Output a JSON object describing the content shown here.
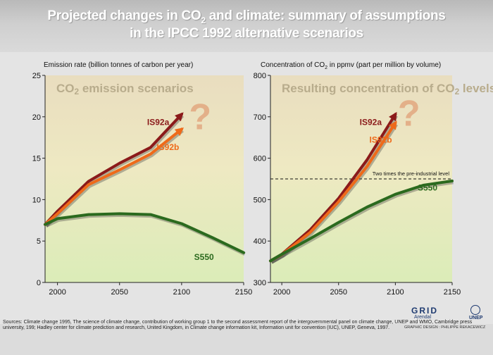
{
  "title": {
    "line1_pre": "Projected changes in CO",
    "line1_sub": "2",
    "line1_post": " and climate: summary of assumptions",
    "line2": "in the IPCC 1992 alternative scenarios"
  },
  "chart_data": [
    {
      "type": "line",
      "ylabel": "Emission rate (billion tonnes of carbon per year)",
      "inset_title_pre": "CO",
      "inset_title_sub": "2",
      "inset_title_post": " emission scenarios",
      "xlim": [
        1990,
        2150
      ],
      "ylim": [
        0,
        25
      ],
      "xticks": [
        2000,
        2050,
        2100,
        2150
      ],
      "yticks": [
        0,
        5,
        10,
        15,
        20,
        25
      ],
      "question_mark": "?",
      "series": [
        {
          "name": "IS92a",
          "color": "#8b1a1a",
          "label_pos": [
            2090,
            19.0
          ],
          "x": [
            1990,
            2000,
            2025,
            2050,
            2075,
            2100
          ],
          "y": [
            7.0,
            8.6,
            12.2,
            14.4,
            16.3,
            20.3
          ],
          "arrow": true
        },
        {
          "name": "IS92b",
          "color": "#ee6a1a",
          "label_pos": [
            2098,
            16.0
          ],
          "x": [
            1990,
            2000,
            2025,
            2050,
            2075,
            2100
          ],
          "y": [
            7.0,
            8.3,
            11.8,
            13.6,
            15.5,
            18.5
          ],
          "arrow": true
        },
        {
          "name": "S550",
          "color": "#2b6a1e",
          "label_pos": [
            2126,
            2.7
          ],
          "x": [
            1990,
            2000,
            2025,
            2050,
            2075,
            2100,
            2125,
            2150
          ],
          "y": [
            7.0,
            7.7,
            8.2,
            8.3,
            8.2,
            7.1,
            5.4,
            3.6
          ],
          "arrow": false
        }
      ]
    },
    {
      "type": "line",
      "ylabel_pre": "Concentration of CO",
      "ylabel_sub": "2",
      "ylabel_post": " in ppmv (part per million by volume)",
      "inset_title_pre": "Resulting concentration of CO",
      "inset_title_sub": "2",
      "inset_title_post": " levels",
      "xlim": [
        1990,
        2150
      ],
      "ylim": [
        300,
        800
      ],
      "xticks": [
        2000,
        2050,
        2100,
        2150
      ],
      "yticks": [
        300,
        400,
        500,
        600,
        700,
        800
      ],
      "question_mark": "?",
      "reference_line": {
        "value": 550,
        "label": "Two times the pre-industrial level"
      },
      "series": [
        {
          "name": "IS92a",
          "color": "#8b1a1a",
          "label_pos": [
            2088,
            680
          ],
          "x": [
            1990,
            2000,
            2025,
            2050,
            2075,
            2100
          ],
          "y": [
            352,
            368,
            427,
            503,
            596,
            706
          ],
          "arrow": true
        },
        {
          "name": "IS92b",
          "color": "#ee6a1a",
          "label_pos": [
            2097,
            638
          ],
          "x": [
            1990,
            2000,
            2025,
            2050,
            2075,
            2100
          ],
          "y": [
            352,
            367,
            421,
            495,
            580,
            685
          ],
          "arrow": true
        },
        {
          "name": "S550",
          "color": "#2b6a1e",
          "label_pos": [
            2137,
            522
          ],
          "x": [
            1990,
            2000,
            2025,
            2050,
            2075,
            2100,
            2125,
            2150
          ],
          "y": [
            352,
            368,
            406,
            445,
            482,
            513,
            535,
            545
          ],
          "arrow": false
        }
      ]
    }
  ],
  "credit": "Sources: Climate change 1995, The science of climate change, contribution of working group 1 to the second assessment report of the intergovernmental panel on climate change, UNEP and WMO, Cambridge press university,  199; Hadley center for climate prediction and research, United Kingdom, in Climate change information kit, Information unit for convention (IUC), UNEP, Geneva, 1997.",
  "logo": {
    "grid": "GRID",
    "arendal": "Arendal",
    "unep": "UNEP"
  },
  "graphic_credit": "GRAPHIC DESIGN : PHILIPPE REKACEWICZ"
}
